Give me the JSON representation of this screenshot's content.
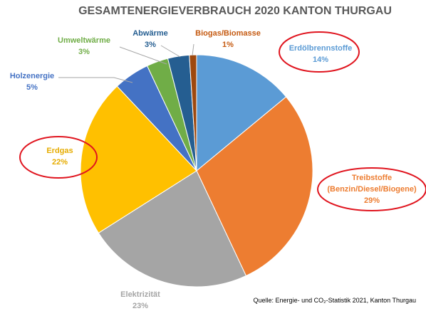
{
  "chart_data": {
    "type": "pie",
    "title": "GESAMTENERGIEVERBRAUCH 2020 KANTON THURGAU",
    "categories": [
      "Erdölbrennstoffe",
      "Treibstoffe (Benzin/Diesel/Biogene)",
      "Elektrizität",
      "Erdgas",
      "Holzenergie",
      "Umweltwärme",
      "Abwärme",
      "Biogas/Biomasse"
    ],
    "values": [
      14,
      29,
      23,
      22,
      5,
      3,
      3,
      1
    ],
    "value_labels": [
      "14%",
      "29%",
      "23%",
      "22%",
      "5%",
      "3%",
      "3%",
      "1%"
    ],
    "colors": [
      "#5b9bd5",
      "#ed7d31",
      "#a5a5a5",
      "#ffc000",
      "#4472c4",
      "#70ad47",
      "#255e91",
      "#9e480e"
    ],
    "label_colors": [
      "#5b9bd5",
      "#ed7d31",
      "#a5a5a5",
      "#e6ac00",
      "#4472c4",
      "#70ad47",
      "#255e91",
      "#c55a11"
    ],
    "source": "Quelle: Energie- und CO₂-Statistik 2021, Kanton Thurgau"
  }
}
